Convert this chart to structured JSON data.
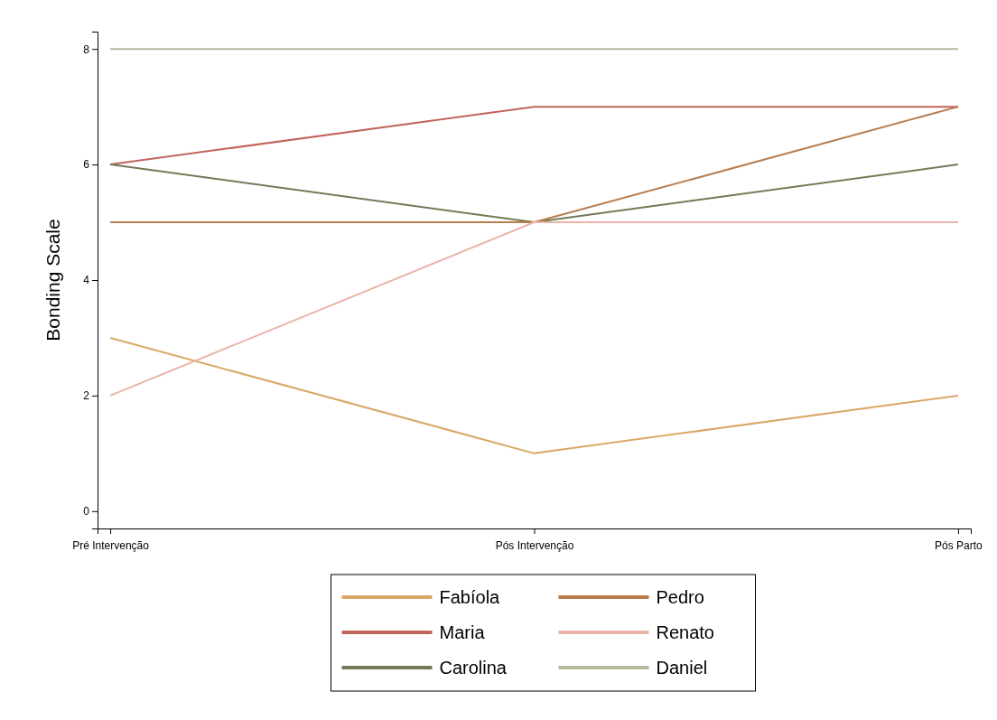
{
  "chart_data": {
    "type": "line",
    "ylabel": "Bonding Scale",
    "categories": [
      "Pré Intervenção",
      "Pós Intervenção",
      "Pós Parto"
    ],
    "ylim": [
      -0.3,
      8.3
    ],
    "yticks": [
      0,
      2,
      4,
      6,
      8
    ],
    "grid": false,
    "legend": "bottom",
    "marker": "none",
    "line_style": "solid",
    "series": [
      {
        "name": "Fabíola",
        "color": "#d9a867",
        "values": [
          3,
          1,
          2
        ]
      },
      {
        "name": "Maria",
        "color": "#c0645c",
        "values": [
          6,
          7,
          7
        ]
      },
      {
        "name": "Carolina",
        "color": "#737a56",
        "values": [
          6,
          5,
          6
        ]
      },
      {
        "name": "Pedro",
        "color": "#b97d4d",
        "values": [
          5,
          5,
          7
        ]
      },
      {
        "name": "Renato",
        "color": "#ebb4aa",
        "values": [
          2,
          5,
          5
        ]
      },
      {
        "name": "Daniel",
        "color": "#b4b99c",
        "values": [
          8,
          8,
          8
        ]
      }
    ]
  }
}
